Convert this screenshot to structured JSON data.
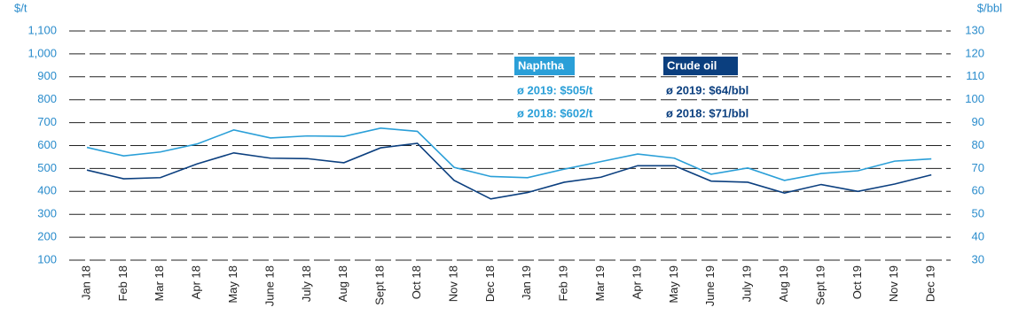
{
  "chart_data": {
    "type": "line",
    "y_label": "$/t",
    "y2_label": "$/bbl",
    "categories": [
      "Jan 18",
      "Feb 18",
      "Mar 18",
      "Apr 18",
      "May 18",
      "June 18",
      "July 18",
      "Aug 18",
      "Sept 18",
      "Oct 18",
      "Nov 18",
      "Dec 18",
      "Jan 19",
      "Feb 19",
      "Mar 19",
      "Apr 19",
      "May 19",
      "June 19",
      "July 19",
      "Aug 19",
      "Sept 19",
      "Oct 19",
      "Nov 19",
      "Dec 19"
    ],
    "series": [
      {
        "name": "Naphtha",
        "color": "#2a9fd8",
        "notes": [
          "ø 2019: $505/t",
          "ø 2018: $602/t"
        ],
        "values": [
          592,
          555,
          572,
          607,
          668,
          633,
          642,
          640,
          676,
          662,
          505,
          465,
          460,
          497,
          530,
          563,
          545,
          475,
          502,
          448,
          478,
          490,
          532,
          542
        ]
      },
      {
        "name": "Crude oil",
        "color": "#0b3f7f",
        "axis": "y2",
        "notes": [
          "ø 2019: $64/bbl",
          "ø 2018: $71/bbl"
        ],
        "values": [
          69.3,
          65.5,
          66,
          72,
          76.8,
          74.5,
          74.3,
          72.5,
          79,
          81,
          64.8,
          56.7,
          59.5,
          64,
          66.2,
          71.2,
          71.2,
          64.5,
          64,
          59.3,
          63,
          60,
          63.2,
          67.2
        ]
      }
    ],
    "ylim": [
      100,
      1100
    ],
    "yticks": [
      100,
      200,
      300,
      400,
      500,
      600,
      700,
      800,
      900,
      {
        "value": 1000,
        "label": "1,000"
      },
      {
        "value": 1100,
        "label": "1,100"
      }
    ],
    "y2lim": [
      30,
      130
    ],
    "y2ticks": [
      30,
      40,
      50,
      60,
      70,
      80,
      90,
      100,
      110,
      120,
      130
    ],
    "grid": true
  }
}
